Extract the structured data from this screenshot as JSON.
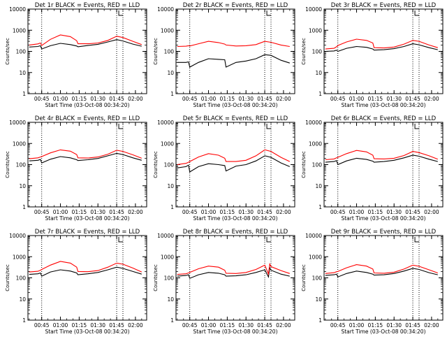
{
  "figure": {
    "start_time_label": "Start Time (03-Oct-08 00:34:20)",
    "ylabel": "Counts/sec",
    "x_tick_labels": [
      "00:45",
      "01:00",
      "01:15",
      "01:30",
      "01:45",
      "02:00"
    ],
    "y_tick_labels": [
      "1",
      "10",
      "100",
      "1000",
      "10000"
    ],
    "colors": {
      "events": "#000000",
      "lld": "#ff0000"
    }
  },
  "chart_data": [
    {
      "type": "line",
      "title": "Det 1r BLACK = Events, RED = LLD",
      "x": [
        "00:35",
        "00:42",
        "00:44",
        "00:45",
        "00:52",
        "01:00",
        "01:08",
        "01:13",
        "01:14",
        "01:22",
        "01:30",
        "01:38",
        "01:45",
        "01:50",
        "01:58",
        "02:05"
      ],
      "series": [
        {
          "name": "Events",
          "values": [
            160,
            170,
            185,
            130,
            185,
            240,
            210,
            180,
            165,
            190,
            215,
            280,
            360,
            310,
            220,
            175
          ]
        },
        {
          "name": "LLD",
          "values": [
            200,
            225,
            250,
            190,
            370,
            600,
            500,
            320,
            230,
            230,
            250,
            330,
            520,
            450,
            300,
            210
          ]
        }
      ],
      "ylim": [
        1,
        10000
      ],
      "xlim": [
        "00:34",
        "02:09"
      ],
      "yscale": "log",
      "vlines": [
        "00:45",
        "01:45",
        "01:50"
      ]
    },
    {
      "type": "line",
      "title": "Det 2r BLACK = Events, RED = LLD",
      "x": [
        "00:35",
        "00:42",
        "00:44",
        "00:45",
        "00:52",
        "01:00",
        "01:08",
        "01:13",
        "01:14",
        "01:22",
        "01:30",
        "01:38",
        "01:45",
        "01:50",
        "01:58",
        "02:05"
      ],
      "series": [
        {
          "name": "Events",
          "values": [
            30,
            30,
            32,
            18,
            30,
            45,
            42,
            40,
            18,
            30,
            35,
            45,
            70,
            65,
            38,
            28
          ]
        },
        {
          "name": "LLD",
          "values": [
            170,
            175,
            185,
            180,
            230,
            300,
            260,
            220,
            200,
            180,
            185,
            210,
            300,
            270,
            200,
            170
          ]
        }
      ],
      "ylim": [
        1,
        10000
      ],
      "xlim": [
        "00:34",
        "02:09"
      ],
      "yscale": "log",
      "vlines": [
        "00:45",
        "01:45",
        "01:50"
      ]
    },
    {
      "type": "line",
      "title": "Det 3r BLACK = Events, RED = LLD",
      "x": [
        "00:35",
        "00:42",
        "00:44",
        "00:45",
        "00:52",
        "01:00",
        "01:08",
        "01:13",
        "01:14",
        "01:22",
        "01:30",
        "01:38",
        "01:45",
        "01:50",
        "01:58",
        "02:05"
      ],
      "series": [
        {
          "name": "Events",
          "values": [
            100,
            105,
            115,
            100,
            140,
            170,
            155,
            130,
            115,
            120,
            135,
            170,
            230,
            205,
            150,
            120
          ]
        },
        {
          "name": "LLD",
          "values": [
            130,
            140,
            165,
            190,
            280,
            380,
            330,
            250,
            150,
            145,
            160,
            220,
            330,
            300,
            200,
            150
          ]
        }
      ],
      "ylim": [
        1,
        10000
      ],
      "xlim": [
        "00:34",
        "02:09"
      ],
      "yscale": "log",
      "vlines": [
        "00:45",
        "01:45",
        "01:50"
      ]
    },
    {
      "type": "line",
      "title": "Det 4r BLACK = Events, RED = LLD",
      "x": [
        "00:35",
        "00:42",
        "00:44",
        "00:45",
        "00:52",
        "01:00",
        "01:08",
        "01:13",
        "01:14",
        "01:22",
        "01:30",
        "01:38",
        "01:45",
        "01:50",
        "01:58",
        "02:05"
      ],
      "series": [
        {
          "name": "Events",
          "values": [
            150,
            160,
            175,
            120,
            180,
            240,
            210,
            170,
            155,
            170,
            195,
            260,
            340,
            300,
            210,
            160
          ]
        },
        {
          "name": "LLD",
          "values": [
            190,
            210,
            230,
            240,
            360,
            500,
            430,
            300,
            210,
            205,
            230,
            310,
            480,
            420,
            290,
            200
          ]
        }
      ],
      "ylim": [
        1,
        10000
      ],
      "xlim": [
        "00:34",
        "02:09"
      ],
      "yscale": "log",
      "vlines": [
        "00:45",
        "01:45",
        "01:50"
      ]
    },
    {
      "type": "line",
      "title": "Det 5r BLACK = Events, RED = LLD",
      "x": [
        "00:35",
        "00:42",
        "00:44",
        "00:45",
        "00:52",
        "01:00",
        "01:08",
        "01:13",
        "01:14",
        "01:22",
        "01:30",
        "01:38",
        "01:45",
        "01:50",
        "01:58",
        "02:05"
      ],
      "series": [
        {
          "name": "Events",
          "values": [
            70,
            80,
            95,
            45,
            80,
            110,
            100,
            90,
            50,
            85,
            100,
            150,
            260,
            220,
            120,
            80
          ]
        },
        {
          "name": "LLD",
          "values": [
            100,
            115,
            130,
            140,
            230,
            330,
            280,
            200,
            140,
            140,
            160,
            260,
            500,
            420,
            220,
            140
          ]
        }
      ],
      "ylim": [
        1,
        10000
      ],
      "xlim": [
        "00:34",
        "02:09"
      ],
      "yscale": "log",
      "vlines": [
        "00:45",
        "01:45",
        "01:50"
      ]
    },
    {
      "type": "line",
      "title": "Det 6r BLACK = Events, RED = LLD",
      "x": [
        "00:35",
        "00:42",
        "00:44",
        "00:45",
        "00:52",
        "01:00",
        "01:08",
        "01:13",
        "01:14",
        "01:22",
        "01:30",
        "01:38",
        "01:45",
        "01:50",
        "01:58",
        "02:05"
      ],
      "series": [
        {
          "name": "Events",
          "values": [
            130,
            140,
            155,
            100,
            150,
            200,
            175,
            145,
            130,
            140,
            160,
            210,
            280,
            250,
            180,
            140
          ]
        },
        {
          "name": "LLD",
          "values": [
            170,
            185,
            210,
            220,
            330,
            470,
            400,
            280,
            190,
            185,
            200,
            270,
            420,
            370,
            260,
            180
          ]
        }
      ],
      "ylim": [
        1,
        10000
      ],
      "xlim": [
        "00:34",
        "02:09"
      ],
      "yscale": "log",
      "vlines": [
        "00:45",
        "01:45",
        "01:50"
      ]
    },
    {
      "type": "line",
      "title": "Det 7r BLACK = Events, RED = LLD",
      "x": [
        "00:35",
        "00:42",
        "00:44",
        "00:45",
        "00:52",
        "01:00",
        "01:08",
        "01:13",
        "01:14",
        "01:22",
        "01:30",
        "01:38",
        "01:45",
        "01:50",
        "01:58",
        "02:05"
      ],
      "series": [
        {
          "name": "Events",
          "values": [
            145,
            155,
            170,
            120,
            190,
            240,
            210,
            170,
            140,
            155,
            180,
            240,
            320,
            280,
            200,
            150
          ]
        },
        {
          "name": "LLD",
          "values": [
            190,
            205,
            230,
            250,
            400,
            600,
            500,
            320,
            200,
            195,
            220,
            320,
            500,
            440,
            290,
            190
          ]
        }
      ],
      "ylim": [
        1,
        10000
      ],
      "xlim": [
        "00:34",
        "02:09"
      ],
      "yscale": "log",
      "vlines": [
        "00:45",
        "01:45",
        "01:50"
      ]
    },
    {
      "type": "line",
      "title": "Det 8r BLACK = Events, RED = LLD",
      "x": [
        "00:35",
        "00:42",
        "00:44",
        "00:45",
        "00:52",
        "01:00",
        "01:08",
        "01:13",
        "01:14",
        "01:22",
        "01:30",
        "01:38",
        "01:45",
        "01:48",
        "01:49",
        "01:50",
        "01:58",
        "02:05"
      ],
      "series": [
        {
          "name": "Events",
          "values": [
            120,
            130,
            140,
            95,
            140,
            180,
            165,
            140,
            120,
            125,
            140,
            180,
            240,
            110,
            300,
            230,
            150,
            120
          ]
        },
        {
          "name": "LLD",
          "values": [
            145,
            155,
            170,
            180,
            270,
            360,
            320,
            230,
            165,
            160,
            180,
            250,
            400,
            150,
            450,
            340,
            220,
            160
          ]
        }
      ],
      "ylim": [
        1,
        10000
      ],
      "xlim": [
        "00:34",
        "02:09"
      ],
      "yscale": "log",
      "vlines": [
        "00:45",
        "01:45",
        "01:50"
      ]
    },
    {
      "type": "line",
      "title": "Det 9r BLACK = Events, RED = LLD",
      "x": [
        "00:35",
        "00:42",
        "00:44",
        "00:45",
        "00:52",
        "01:00",
        "01:08",
        "01:13",
        "01:14",
        "01:22",
        "01:30",
        "01:38",
        "01:45",
        "01:50",
        "01:58",
        "02:05"
      ],
      "series": [
        {
          "name": "Events",
          "values": [
            130,
            140,
            150,
            110,
            160,
            210,
            180,
            150,
            135,
            140,
            160,
            210,
            280,
            250,
            175,
            140
          ]
        },
        {
          "name": "LLD",
          "values": [
            160,
            175,
            195,
            200,
            300,
            420,
            360,
            260,
            170,
            165,
            185,
            260,
            400,
            350,
            240,
            170
          ]
        }
      ],
      "ylim": [
        1,
        10000
      ],
      "xlim": [
        "00:34",
        "02:09"
      ],
      "yscale": "log",
      "vlines": [
        "00:45",
        "01:45",
        "01:50"
      ]
    }
  ]
}
